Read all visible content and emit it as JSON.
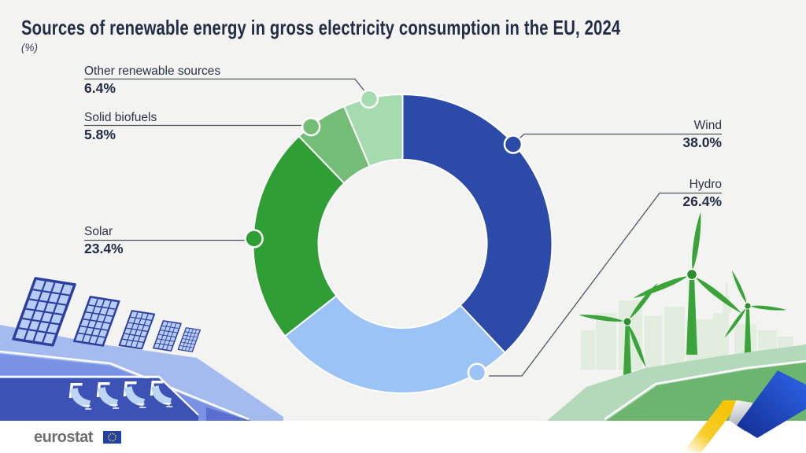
{
  "header": {
    "title": "Sources of renewable energy in gross electricity consumption in the EU, 2024",
    "subtitle": "(%)"
  },
  "chart_data": {
    "type": "donut",
    "title": "Sources of renewable energy in gross electricity consumption in the EU, 2024",
    "unit": "%",
    "start_angle_deg": 0,
    "direction": "clockwise",
    "inner_radius": 107,
    "outer_radius": 190,
    "legend_position": "callout-labels",
    "series": [
      {
        "label": "Wind",
        "value": 38.0,
        "display": "38.0%",
        "color": "#2c4aa8",
        "marker_deg": 48
      },
      {
        "label": "Hydro",
        "value": 26.4,
        "display": "26.4%",
        "color": "#9cc3f6",
        "marker_deg": 150
      },
      {
        "label": "Solar",
        "value": 23.4,
        "display": "23.4%",
        "color": "#2f9e34",
        "marker_deg": 272
      },
      {
        "label": "Solid biofuels",
        "value": 5.8,
        "display": "5.8%",
        "color": "#74bd77",
        "marker_deg": 322
      },
      {
        "label": "Other renewable sources",
        "value": 6.4,
        "display": "6.4%",
        "color": "#a5dbae",
        "marker_deg": 347
      }
    ]
  },
  "footer": {
    "logo_text": "eurostat"
  },
  "decor": {
    "icons": [
      "solar-panels-icon",
      "hydro-dam-icon",
      "city-skyline-icon",
      "wind-turbines-icon",
      "eu-ribbon-icon",
      "eu-flag-icon"
    ],
    "palette": {
      "background": "#f3f3f1",
      "hill_light_blue": "#a3bbee",
      "hill_mid_blue": "#7b92e4",
      "dam_blue": "#3c52b5",
      "panel_frame_blue": "#2c3e9e",
      "panel_cell_blue": "#b8cdf5",
      "hill_pale_green": "#b3d9ba",
      "hill_mid_green": "#6cb56f",
      "turbine_green": "#3aa339",
      "skyline_green": "#e2ecdf",
      "ribbon_yellow": "#f5c300",
      "ribbon_blue": "#2456e0",
      "footer_white": "#ffffff",
      "eurostat_gray": "#6f6f6f",
      "flag_blue": "#2342a5",
      "flag_stars_yellow": "#ffd617"
    }
  }
}
